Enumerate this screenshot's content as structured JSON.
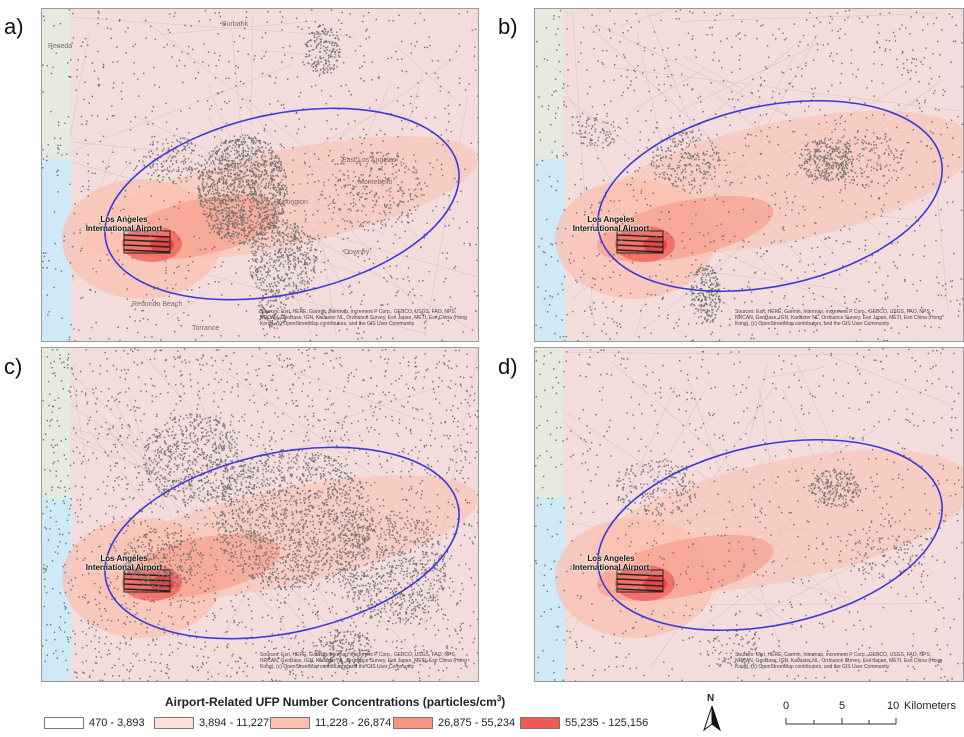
{
  "panels": [
    {
      "id": "a",
      "letter": "a)"
    },
    {
      "id": "b",
      "letter": "b)"
    },
    {
      "id": "c",
      "letter": "c)"
    },
    {
      "id": "d",
      "letter": "d)"
    }
  ],
  "airport_label_line1": "Los Angeles",
  "airport_label_line2": "International Airport",
  "sources_credit": "Sources: Esri, HERE, Garmin, Intermap, increment P Corp., GEBCO, USGS, FAO, NPS, NRCAN, GeoBase, IGN, Kadaster NL, Ordnance Survey, Esri Japan, METI, Esri China (Hong Kong), (c) OpenStreetMap contributors, and the GIS User Community",
  "place_names": {
    "east_la": "East Los Angeles",
    "montebello": "Montebello",
    "huntington": "Huntington",
    "downey": "Downey",
    "redondo": "Redondo Beach",
    "torrance": "Torrance",
    "burbank": "Burbank",
    "reseda": "Reseda"
  },
  "legend": {
    "title_main": "Airport-Related UFP Number Concentrations (particles/cm",
    "title_sup": "3",
    "title_end": ")",
    "classes": [
      {
        "label": "470 - 3,893",
        "color": "#ffffff"
      },
      {
        "label": "3,894 - 11,227",
        "color": "#fde0d8"
      },
      {
        "label": "11,228 - 26,874",
        "color": "#fbbfae"
      },
      {
        "label": "26,875 - 55,234",
        "color": "#f7947f"
      },
      {
        "label": "55,235 - 125,156",
        "color": "#f05a55"
      }
    ]
  },
  "north_label": "N",
  "scale_bar": {
    "tick0": "0",
    "tick1": "5",
    "tick2": "10",
    "unit": "Kilometers"
  },
  "colors": {
    "ellipse": "#3a3ad8",
    "points": "#6e6e6e",
    "ocean": "#cfe9f7",
    "base": "#f2dcdc"
  }
}
